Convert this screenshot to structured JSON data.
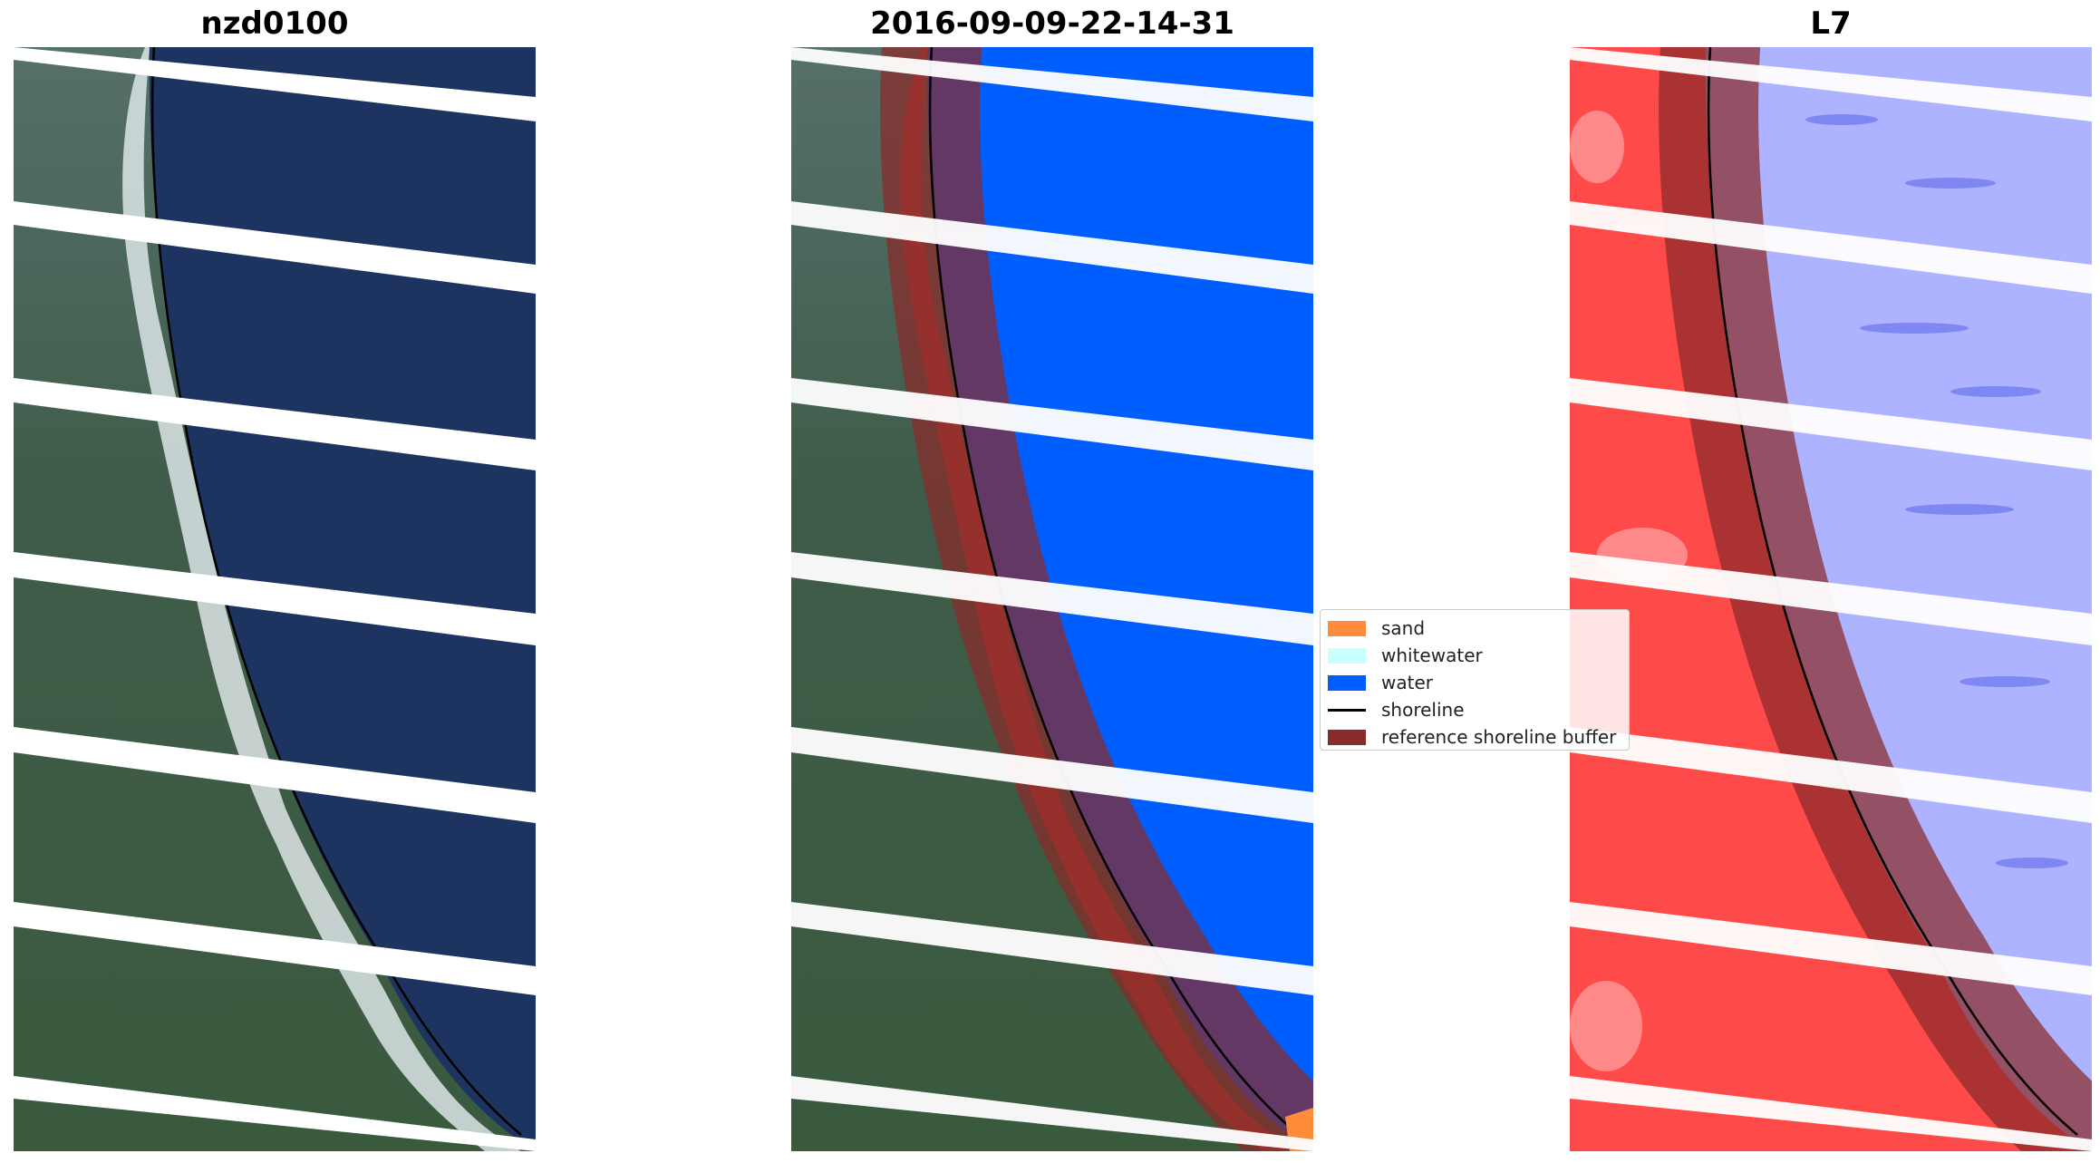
{
  "panels": [
    {
      "title": "nzd0100"
    },
    {
      "title": "2016-09-09-22-14-31"
    },
    {
      "title": "L7"
    }
  ],
  "legend": [
    {
      "label": "sand",
      "color": "#ff8c3a"
    },
    {
      "label": "whitewater",
      "color": "#c9ffff"
    },
    {
      "label": "water",
      "color": "#005eff"
    },
    {
      "label": "shoreline",
      "color": "#000000"
    },
    {
      "label": "reference shoreline buffer",
      "color": "#8b2a2a"
    }
  ],
  "colors": {
    "land_rgb": "#3d5a4c",
    "sea_rgb": "#1d3461",
    "surf_rgb": "#dfe6ea",
    "water_class": "#005eff",
    "buffer": "#8b2a2a",
    "mndwi_land": "#ff4a4a",
    "mndwi_water": "#aeb3ff"
  }
}
